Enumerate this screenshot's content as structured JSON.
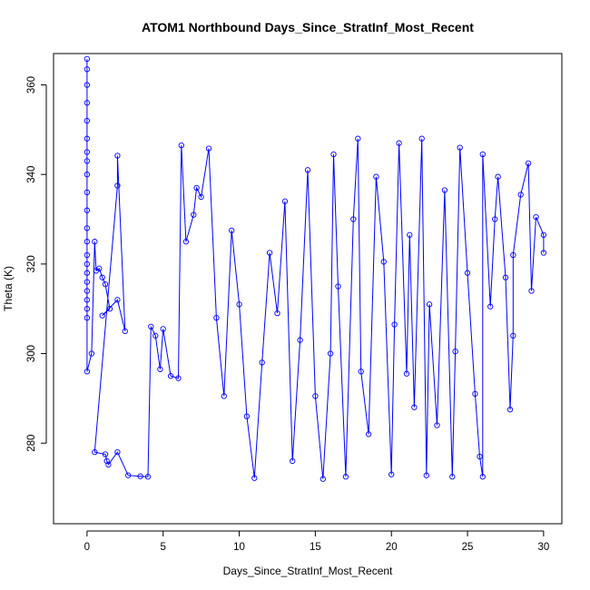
{
  "chart_data": {
    "type": "scatter",
    "title": "ATOM1 Northbound Days_Since_StratInf_Most_Recent",
    "xlabel": "Days_Since_StratInf_Most_Recent",
    "ylabel": "Theta (K)",
    "xlim": [
      -2.2,
      31.2
    ],
    "ylim": [
      262,
      367
    ],
    "x_ticks": [
      0,
      5,
      10,
      15,
      20,
      25,
      30
    ],
    "y_ticks": [
      280,
      300,
      320,
      340,
      360
    ],
    "series_color": "#0000ff",
    "marker": "open-circle",
    "connected": true,
    "grid": false,
    "points": [
      [
        0.0,
        365.8
      ],
      [
        0.0,
        363.5
      ],
      [
        0.0,
        360.0
      ],
      [
        0.0,
        356.0
      ],
      [
        0.0,
        352.0
      ],
      [
        0.0,
        348.0
      ],
      [
        0.0,
        345.0
      ],
      [
        0.0,
        343.0
      ],
      [
        0.0,
        340.0
      ],
      [
        0.0,
        336.0
      ],
      [
        0.0,
        332.0
      ],
      [
        0.0,
        328.0
      ],
      [
        0.0,
        325.0
      ],
      [
        0.0,
        322.0
      ],
      [
        0.0,
        320.0
      ],
      [
        0.0,
        318.0
      ],
      [
        0.0,
        316.0
      ],
      [
        0.0,
        314.0
      ],
      [
        0.0,
        312.0
      ],
      [
        0.0,
        310.0
      ],
      [
        0.0,
        308.0
      ],
      [
        0.0,
        296.0
      ],
      [
        0.3,
        300.0
      ],
      [
        0.5,
        325.0
      ],
      [
        0.6,
        318.5
      ],
      [
        0.8,
        319.0
      ],
      [
        1.0,
        317.0
      ],
      [
        1.2,
        315.5
      ],
      [
        1.5,
        310.0
      ],
      [
        1.0,
        308.5
      ],
      [
        2.0,
        312.0
      ],
      [
        2.5,
        305.0
      ],
      [
        2.0,
        344.2
      ],
      [
        2.0,
        337.5
      ],
      [
        0.5,
        278.0
      ],
      [
        1.2,
        277.5
      ],
      [
        1.3,
        276.0
      ],
      [
        1.4,
        275.2
      ],
      [
        2.0,
        278.0
      ],
      [
        2.7,
        272.8
      ],
      [
        3.5,
        272.6
      ],
      [
        4.0,
        272.5
      ],
      [
        4.2,
        306.0
      ],
      [
        4.5,
        304.0
      ],
      [
        4.8,
        296.5
      ],
      [
        5.0,
        305.5
      ],
      [
        5.5,
        295.0
      ],
      [
        6.0,
        294.5
      ],
      [
        6.2,
        346.5
      ],
      [
        6.5,
        325.0
      ],
      [
        7.0,
        331.0
      ],
      [
        7.2,
        337.0
      ],
      [
        7.5,
        335.0
      ],
      [
        8.0,
        345.8
      ],
      [
        8.5,
        308.0
      ],
      [
        9.0,
        290.5
      ],
      [
        9.5,
        327.5
      ],
      [
        10.0,
        311.0
      ],
      [
        10.5,
        286.0
      ],
      [
        11.0,
        272.2
      ],
      [
        11.5,
        298.0
      ],
      [
        12.0,
        322.5
      ],
      [
        12.5,
        309.0
      ],
      [
        13.0,
        334.0
      ],
      [
        13.5,
        276.0
      ],
      [
        14.0,
        303.0
      ],
      [
        14.5,
        341.0
      ],
      [
        15.0,
        290.5
      ],
      [
        15.5,
        272.0
      ],
      [
        16.0,
        300.0
      ],
      [
        16.2,
        344.5
      ],
      [
        16.5,
        315.0
      ],
      [
        17.0,
        272.5
      ],
      [
        17.5,
        330.0
      ],
      [
        17.8,
        348.0
      ],
      [
        18.0,
        296.0
      ],
      [
        18.5,
        282.0
      ],
      [
        19.0,
        339.5
      ],
      [
        19.5,
        320.5
      ],
      [
        20.0,
        273.0
      ],
      [
        20.2,
        306.5
      ],
      [
        20.5,
        347.0
      ],
      [
        21.0,
        295.5
      ],
      [
        21.2,
        326.5
      ],
      [
        21.5,
        288.0
      ],
      [
        22.0,
        348.0
      ],
      [
        22.3,
        272.8
      ],
      [
        22.5,
        311.0
      ],
      [
        23.0,
        284.0
      ],
      [
        23.5,
        336.5
      ],
      [
        24.0,
        272.5
      ],
      [
        24.2,
        300.5
      ],
      [
        24.5,
        346.0
      ],
      [
        25.0,
        318.0
      ],
      [
        25.5,
        291.0
      ],
      [
        25.8,
        277.0
      ],
      [
        26.0,
        272.5
      ],
      [
        26.0,
        344.5
      ],
      [
        26.5,
        310.5
      ],
      [
        26.8,
        330.0
      ],
      [
        27.0,
        339.5
      ],
      [
        27.5,
        317.0
      ],
      [
        27.8,
        287.5
      ],
      [
        28.0,
        304.0
      ],
      [
        28.0,
        322.0
      ],
      [
        28.5,
        335.5
      ],
      [
        29.0,
        342.5
      ],
      [
        29.2,
        314.0
      ],
      [
        29.5,
        330.5
      ],
      [
        30.0,
        326.5
      ],
      [
        30.0,
        322.5
      ]
    ]
  }
}
